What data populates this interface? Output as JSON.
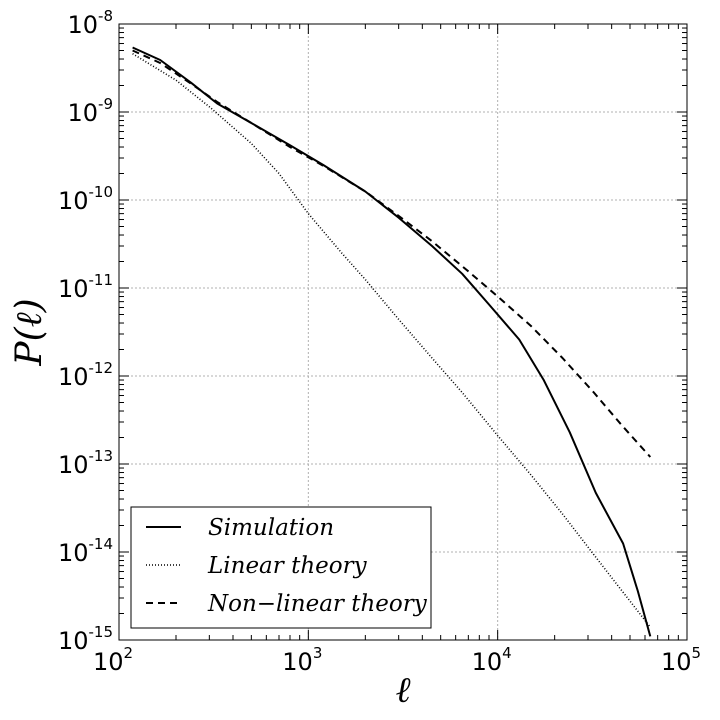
{
  "chart_data": {
    "type": "line",
    "xlabel": "ℓ",
    "ylabel": "P(ℓ)",
    "xscale": "log",
    "yscale": "log",
    "xlim": [
      100,
      100000
    ],
    "ylim": [
      1e-15,
      1e-08
    ],
    "grid": true,
    "legend_position": "lower-left",
    "x_ticks": [
      {
        "base": "10",
        "exp": "2"
      },
      {
        "base": "10",
        "exp": "3"
      },
      {
        "base": "10",
        "exp": "4"
      },
      {
        "base": "10",
        "exp": "5"
      }
    ],
    "y_ticks": [
      {
        "base": "10",
        "exp": "-8"
      },
      {
        "base": "10",
        "exp": "-9"
      },
      {
        "base": "10",
        "exp": "-10"
      },
      {
        "base": "10",
        "exp": "-11"
      },
      {
        "base": "10",
        "exp": "-12"
      },
      {
        "base": "10",
        "exp": "-13"
      },
      {
        "base": "10",
        "exp": "-14"
      },
      {
        "base": "10",
        "exp": "-15"
      }
    ],
    "series": [
      {
        "name": "Simulation",
        "style": "solid",
        "color": "#000000",
        "points": [
          [
            118,
            5.4e-09
          ],
          [
            165,
            3.9e-09
          ],
          [
            240,
            2.15e-09
          ],
          [
            330,
            1.25e-09
          ],
          [
            500,
            7.5e-10
          ],
          [
            800,
            4.2e-10
          ],
          [
            1200,
            2.5e-10
          ],
          [
            2000,
            1.25e-10
          ],
          [
            3000,
            6.3e-11
          ],
          [
            4500,
            3e-11
          ],
          [
            6500,
            1.45e-11
          ],
          [
            9000,
            6.5e-12
          ],
          [
            13000,
            2.6e-12
          ],
          [
            17500,
            9e-13
          ],
          [
            24000,
            2.3e-13
          ],
          [
            33000,
            4.7e-14
          ],
          [
            46000,
            1.25e-14
          ],
          [
            55000,
            3.6e-15
          ],
          [
            64000,
            1.1e-15
          ]
        ]
      },
      {
        "name": "Linear theory",
        "style": "dotted",
        "color": "#000000",
        "points": [
          [
            118,
            4.6e-09
          ],
          [
            200,
            2.3e-09
          ],
          [
            300,
            1.15e-09
          ],
          [
            500,
            4.4e-10
          ],
          [
            700,
            2e-10
          ],
          [
            1000,
            7e-11
          ],
          [
            1500,
            2.5e-11
          ],
          [
            2000,
            1.25e-11
          ],
          [
            3000,
            4.4e-12
          ],
          [
            4500,
            1.6e-12
          ],
          [
            6500,
            6.5e-13
          ],
          [
            10000,
            2.1e-13
          ],
          [
            15000,
            7.5e-14
          ],
          [
            22000,
            2.7e-14
          ],
          [
            32000,
            9.5e-15
          ],
          [
            45000,
            3.7e-15
          ],
          [
            64000,
            1.4e-15
          ]
        ]
      },
      {
        "name": "Non−linear theory",
        "style": "dashed",
        "color": "#000000",
        "points": [
          [
            118,
            5e-09
          ],
          [
            165,
            3.6e-09
          ],
          [
            240,
            2.1e-09
          ],
          [
            330,
            1.3e-09
          ],
          [
            500,
            7.5e-10
          ],
          [
            800,
            4e-10
          ],
          [
            1200,
            2.45e-10
          ],
          [
            2000,
            1.25e-10
          ],
          [
            3000,
            6.6e-11
          ],
          [
            4500,
            3.4e-11
          ],
          [
            7000,
            1.55e-11
          ],
          [
            10000,
            8e-12
          ],
          [
            15000,
            3.7e-12
          ],
          [
            22000,
            1.6e-12
          ],
          [
            32000,
            6.6e-13
          ],
          [
            45000,
            2.8e-13
          ],
          [
            64000,
            1.2e-13
          ]
        ]
      }
    ]
  }
}
